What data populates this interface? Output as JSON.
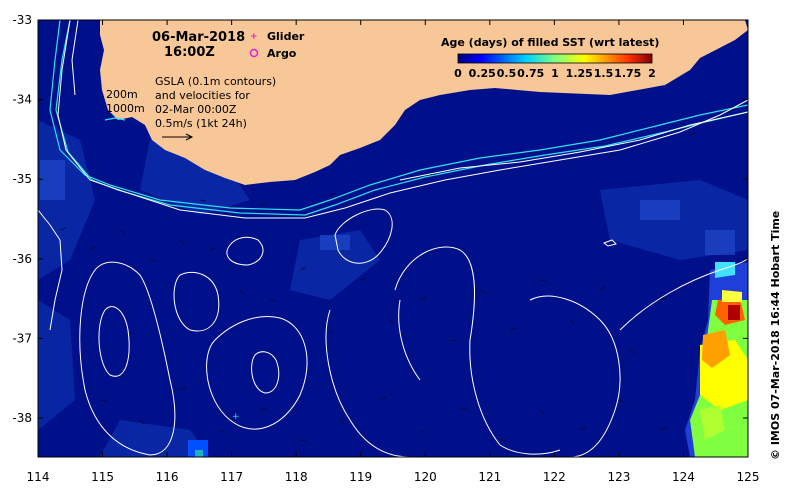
{
  "map": {
    "date": "06-Mar-2018",
    "time": "16:00Z",
    "legend_glider": "Glider",
    "legend_argo": "Argo",
    "glider_marker": "+",
    "argo_marker": "o",
    "isobath_200": "200m",
    "isobath_1000": "1000m",
    "gsla_line1": "GSLA (0.1m contours)",
    "gsla_line2": "and velocities for",
    "gsla_line3": "02-Mar 00:00Z",
    "gsla_line4": "0.5m/s (1kt 24h)",
    "colorbar_title": "Age (days) of filled SST (wrt latest)",
    "colorbar_ticks": [
      "0",
      "0.25",
      "0.5",
      "0.75",
      "1",
      "1.25",
      "1.5",
      "1.75",
      "2"
    ],
    "x_ticks": [
      "114",
      "115",
      "116",
      "117",
      "118",
      "119",
      "120",
      "121",
      "122",
      "123",
      "124",
      "125"
    ],
    "y_ticks": [
      "-33",
      "-34",
      "-35",
      "-36",
      "-37",
      "-38"
    ],
    "credit": "© IMOS 07-Mar-2018 16:44 Hobart Time"
  },
  "colors": {
    "ocean": "#00108a",
    "land": "#f7c797",
    "contour": "#ffffff",
    "isobath": "#2fe0f0",
    "glider": "#e020e0",
    "argo": "#e020e0"
  }
}
